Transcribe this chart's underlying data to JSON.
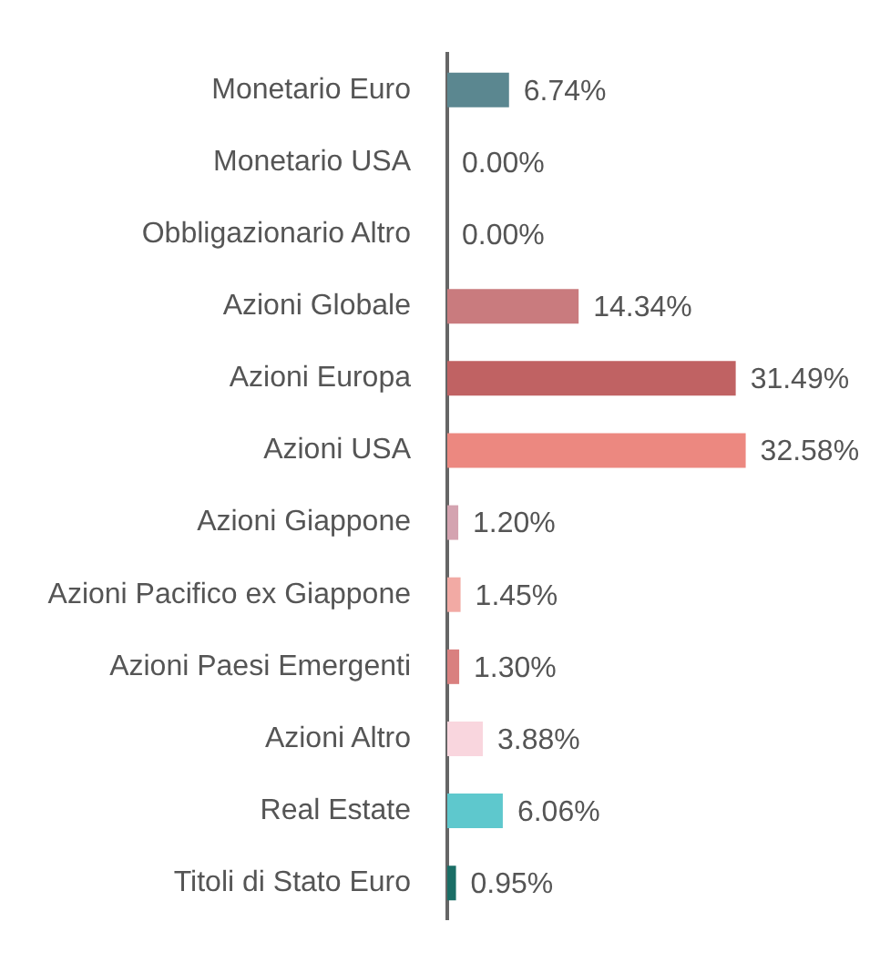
{
  "chart_data": {
    "type": "bar",
    "orientation": "horizontal",
    "grid": false,
    "legend": false,
    "value_labels": [
      "6.74%",
      "0.00%",
      "0.00%",
      "14.34%",
      "31.49%",
      "32.58%",
      "1.20%",
      "1.45%",
      "1.30%",
      "3.88%",
      "6.06%",
      "0.95%"
    ],
    "categories": [
      "Monetario Euro",
      "Monetario USA",
      "Obbligazionario Altro",
      "Azioni Globale",
      "Azioni Europa",
      "Azioni USA",
      "Azioni Giappone",
      "Azioni Pacifico ex Giappone",
      "Azioni Paesi Emergenti",
      "Azioni Altro",
      "Real Estate",
      "Titoli di Stato Euro"
    ],
    "values": [
      6.74,
      0.0,
      0.0,
      14.34,
      31.49,
      32.58,
      1.2,
      1.45,
      1.3,
      3.88,
      6.06,
      0.95
    ],
    "colors": [
      "#5b8790",
      "#7a9aa3",
      "#8fa3a8",
      "#c97b7e",
      "#c06263",
      "#ec8880",
      "#d4a3b0",
      "#f2aaa4",
      "#d9807f",
      "#f9d6de",
      "#5ec8cd",
      "#1a6e66"
    ]
  }
}
